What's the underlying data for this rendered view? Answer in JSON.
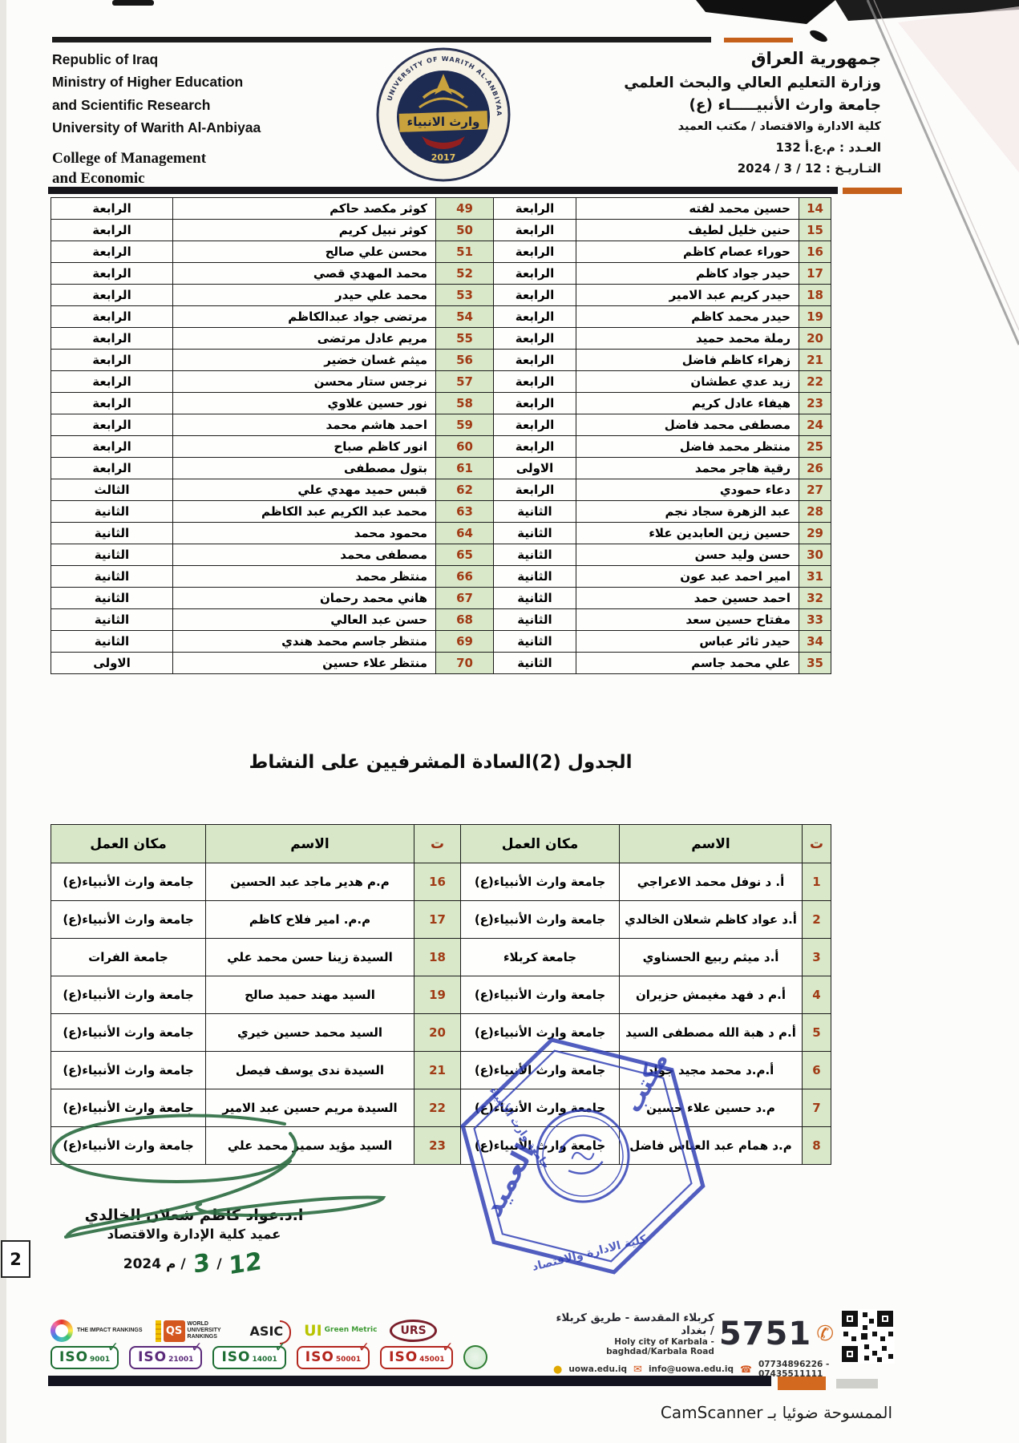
{
  "header": {
    "en1": "Republic of Iraq",
    "en2": "Ministry of Higher Education",
    "en3": "and Scientific Research",
    "en4": "University of Warith Al-Anbiyaa",
    "college1": "College of Management",
    "college2": "and Economic",
    "ar1": "جمهورية العراق",
    "ar2": "وزارة التعليم العالي والبحث العلمي",
    "ar3": "جامعة وارث الأنبيـــــاء (ع)",
    "ar4": "كلية الادارة والاقتصاد / مكتب العميد",
    "issue_line": "العـدد : م.ع.أ 132",
    "date_line": "التـاريـخ : 12 / 3 / 2024"
  },
  "logo": {
    "arc_text": "UNIVERSITY OF WARITH AL-ANBIYAA",
    "band": "وارث الانبياء",
    "year": "2017"
  },
  "table1": {
    "rows": [
      {
        "n1": "14",
        "name1": "حسين محمد لفته",
        "st1": "الرابعة",
        "n2": "49",
        "name2": "كوثر مكصد حاكم",
        "st2": "الرابعة"
      },
      {
        "n1": "15",
        "name1": "حنين خليل لطيف",
        "st1": "الرابعة",
        "n2": "50",
        "name2": "كوثر نبيل كريم",
        "st2": "الرابعة"
      },
      {
        "n1": "16",
        "name1": "حوراء عصام كاظم",
        "st1": "الرابعة",
        "n2": "51",
        "name2": "محسن علي صالح",
        "st2": "الرابعة"
      },
      {
        "n1": "17",
        "name1": "حيدر جواد كاظم",
        "st1": "الرابعة",
        "n2": "52",
        "name2": "محمد المهدي قصي",
        "st2": "الرابعة"
      },
      {
        "n1": "18",
        "name1": "حيدر كريم عبد الامير",
        "st1": "الرابعة",
        "n2": "53",
        "name2": "محمد علي حيدر",
        "st2": "الرابعة"
      },
      {
        "n1": "19",
        "name1": "حيدر محمد كاظم",
        "st1": "الرابعة",
        "n2": "54",
        "name2": "مرتضى جواد عبدالكاظم",
        "st2": "الرابعة"
      },
      {
        "n1": "20",
        "name1": "رملة محمد حميد",
        "st1": "الرابعة",
        "n2": "55",
        "name2": "مريم عادل مرتضى",
        "st2": "الرابعة"
      },
      {
        "n1": "21",
        "name1": "زهراء كاظم فاضل",
        "st1": "الرابعة",
        "n2": "56",
        "name2": "ميثم غسان خضير",
        "st2": "الرابعة"
      },
      {
        "n1": "22",
        "name1": "زيد عدي عطشان",
        "st1": "الرابعة",
        "n2": "57",
        "name2": "نرجس ستار محسن",
        "st2": "الرابعة"
      },
      {
        "n1": "23",
        "name1": "هيفاء عادل كريم",
        "st1": "الرابعة",
        "n2": "58",
        "name2": "نور حسين علاوي",
        "st2": "الرابعة"
      },
      {
        "n1": "24",
        "name1": "مصطفى محمد فاضل",
        "st1": "الرابعة",
        "n2": "59",
        "name2": "احمد هاشم محمد",
        "st2": "الرابعة"
      },
      {
        "n1": "25",
        "name1": "منتظر محمد فاضل",
        "st1": "الرابعة",
        "n2": "60",
        "name2": "انور كاظم صباح",
        "st2": "الرابعة"
      },
      {
        "n1": "26",
        "name1": "رقية هاجر محمد",
        "st1": "الاولى",
        "n2": "61",
        "name2": "بتول مصطفى",
        "st2": "الرابعة"
      },
      {
        "n1": "27",
        "name1": "دعاء حمودي",
        "st1": "الرابعة",
        "n2": "62",
        "name2": "قبس حميد مهدي علي",
        "st2": "الثالث"
      },
      {
        "n1": "28",
        "name1": "عبد الزهرة سجاد نجم",
        "st1": "الثانية",
        "n2": "63",
        "name2": "محمد عبد الكريم عبد الكاظم",
        "st2": "الثانية"
      },
      {
        "n1": "29",
        "name1": "حسين زين العابدين علاء",
        "st1": "الثانية",
        "n2": "64",
        "name2": "محمود محمد",
        "st2": "الثانية"
      },
      {
        "n1": "30",
        "name1": "حسن وليد حسن",
        "st1": "الثانية",
        "n2": "65",
        "name2": "مصطفى محمد",
        "st2": "الثانية"
      },
      {
        "n1": "31",
        "name1": "امير احمد عبد عون",
        "st1": "الثانية",
        "n2": "66",
        "name2": "منتظر محمد",
        "st2": "الثانية"
      },
      {
        "n1": "32",
        "name1": "احمد حسين حمد",
        "st1": "الثانية",
        "n2": "67",
        "name2": "هاني محمد رحمان",
        "st2": "الثانية"
      },
      {
        "n1": "33",
        "name1": "مفتاح حسين سعد",
        "st1": "الثانية",
        "n2": "68",
        "name2": "حسن عبد العالي",
        "st2": "الثانية"
      },
      {
        "n1": "34",
        "name1": "حيدر ثائر عباس",
        "st1": "الثانية",
        "n2": "69",
        "name2": "منتظر جاسم محمد هندي",
        "st2": "الثانية"
      },
      {
        "n1": "35",
        "name1": "علي محمد جاسم",
        "st1": "الثانية",
        "n2": "70",
        "name2": "منتظر علاء حسين",
        "st2": "الاولى"
      }
    ]
  },
  "table2": {
    "title": "الجدول (2)السادة المشرفيين على النشاط",
    "headers": [
      "ت",
      "الاسم",
      "مكان العمل",
      "ت",
      "الاسم",
      "مكان العمل"
    ],
    "rows": [
      {
        "n1": "1",
        "name1": "أ. د نوفل محمد الاعراجي",
        "place1": "جامعة وارث الأنبياء(ع)",
        "n2": "16",
        "name2": "م.م هدير ماجد عبد الحسين",
        "place2": "جامعة وارث الأنبياء(ع)"
      },
      {
        "n1": "2",
        "name1": "أ.د عواد كاظم شعلان الخالدي",
        "place1": "جامعة وارث الأنبياء(ع)",
        "n2": "17",
        "name2": "م.م. امير فلاح كاظم",
        "place2": "جامعة وارث الأنبياء(ع)"
      },
      {
        "n1": "3",
        "name1": "أ.د ميثم ربيع الحسناوي",
        "place1": "جامعة كربلاء",
        "n2": "18",
        "name2": "السيدة زينا حسن محمد علي",
        "place2": "جامعة الفرات"
      },
      {
        "n1": "4",
        "name1": "أ.م د فهد مغيمش حزيران",
        "place1": "جامعة وارث الأنبياء(ع)",
        "n2": "19",
        "name2": "السيد مهند حميد صالح",
        "place2": "جامعة وارث الأنبياء(ع)"
      },
      {
        "n1": "5",
        "name1": "أ.م د هبة الله مصطفى السيد",
        "place1": "جامعة وارث الأنبياء(ع)",
        "n2": "20",
        "name2": "السيد محمد حسين خيري",
        "place2": "جامعة وارث الأنبياء(ع)"
      },
      {
        "n1": "6",
        "name1": "أ.م.د محمد مجيد جواد",
        "place1": "جامعة وارث الأنبياء(ع)",
        "n2": "21",
        "name2": "السيدة ندى يوسف فيصل",
        "place2": "جامعة وارث الأنبياء(ع)"
      },
      {
        "n1": "7",
        "name1": "م.د حسين علاء حسين",
        "place1": "جامعة وارث الأنبياء(ع)",
        "n2": "22",
        "name2": "السيدة مريم حسين عبد الامير",
        "place2": "جامعة وارث الأنبياء(ع)"
      },
      {
        "n1": "8",
        "name1": "م.د همام عبد العباس فاضل",
        "place1": "جامعة وارث الأنبياء(ع)",
        "n2": "23",
        "name2": "السيد مؤيد سمير محمد علي",
        "place2": "جامعة وارث الأنبياء(ع)"
      }
    ]
  },
  "signature": {
    "name": "ا.د.عواد كاظم شعلان الخالدي",
    "title": "عميد كلية الإدارة والاقتصاد",
    "date_prefix": "م 2024 /",
    "month": "3",
    "sep": "/",
    "day": "12"
  },
  "page_number": "2",
  "stamp": {
    "word1": "مكتب",
    "word2": "العميد",
    "ring_top": "جامعة وارث الأنبياء",
    "ring_bottom": "كلية الادارة والاقتصاد"
  },
  "footer": {
    "rankings": {
      "impact": "THE IMPACT RANKINGS",
      "qs": "QS",
      "wur": "WORLD UNIVERSITY RANKINGS",
      "asic": "ASIC",
      "ui": "UI",
      "ui_sub": "Green Metric",
      "urs": "URS"
    },
    "iso": [
      {
        "label": "ISO",
        "num": "9001",
        "color": "#1e6e34"
      },
      {
        "label": "ISO",
        "num": "21001",
        "color": "#5b2a7a"
      },
      {
        "label": "ISO",
        "num": "14001",
        "color": "#1e6e34"
      },
      {
        "label": "ISO",
        "num": "50001",
        "color": "#b3261e"
      },
      {
        "label": "ISO",
        "num": "45001",
        "color": "#b3261e"
      }
    ],
    "contact": {
      "phone": "5751",
      "address_ar": "كربلاء المقدسة - طريق كربلاء / بغداد",
      "address_en": "Holy city of Karbala - baghdad/Karbala Road",
      "web": "uowa.edu.iq",
      "email": "info@uowa.edu.iq",
      "tels": "07734896226 - 07435511111"
    }
  },
  "camscanner": "الممسوحة ضوئيا بـ CamScanner"
}
